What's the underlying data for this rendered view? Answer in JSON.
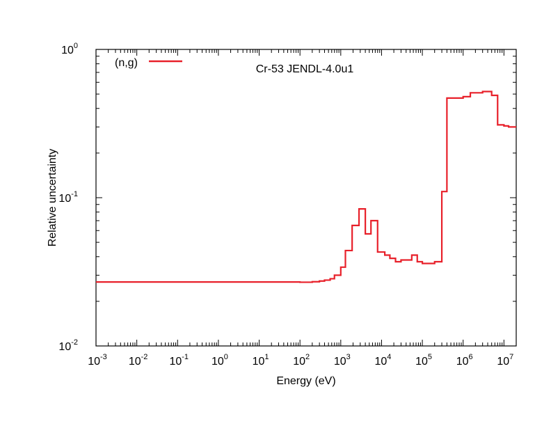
{
  "chart_data": {
    "type": "line",
    "title": "Cr-53 JENDL-4.0u1",
    "xlabel": "Energy (eV)",
    "ylabel": "Relative uncertainty",
    "x_scale": "log",
    "y_scale": "log",
    "xlim": [
      0.001,
      20000000
    ],
    "ylim": [
      0.01,
      1
    ],
    "x_ticks": [
      {
        "base": "10",
        "exp": "-3",
        "value": 0.001
      },
      {
        "base": "10",
        "exp": "-2",
        "value": 0.01
      },
      {
        "base": "10",
        "exp": "-1",
        "value": 0.1
      },
      {
        "base": "10",
        "exp": "0",
        "value": 1
      },
      {
        "base": "10",
        "exp": "1",
        "value": 10
      },
      {
        "base": "10",
        "exp": "2",
        "value": 100
      },
      {
        "base": "10",
        "exp": "3",
        "value": 1000
      },
      {
        "base": "10",
        "exp": "4",
        "value": 10000
      },
      {
        "base": "10",
        "exp": "5",
        "value": 100000
      },
      {
        "base": "10",
        "exp": "6",
        "value": 1000000
      },
      {
        "base": "10",
        "exp": "7",
        "value": 10000000
      }
    ],
    "y_ticks": [
      {
        "base": "10",
        "exp": "-2",
        "value": 0.01
      },
      {
        "base": "10",
        "exp": "-1",
        "value": 0.1
      },
      {
        "base": "10",
        "exp": "0",
        "value": 1
      }
    ],
    "legend_position": "top-left",
    "grid": false,
    "series": [
      {
        "name": "(n,g)",
        "color": "#e8202a",
        "step": true,
        "x": [
          0.001,
          0.1,
          10,
          100,
          200,
          300,
          400,
          550,
          700,
          1000,
          1300,
          1900,
          2800,
          4000,
          5500,
          8000,
          12000,
          16000,
          22000,
          30000,
          40000,
          55000,
          75000,
          100000,
          140000,
          200000,
          300000,
          400000,
          550000,
          1000000,
          1500000,
          2000000,
          3000000,
          5000000,
          7000000,
          10000000,
          13000000,
          20000000
        ],
        "y": [
          0.027,
          0.027,
          0.027,
          0.0269,
          0.0271,
          0.0274,
          0.0278,
          0.0284,
          0.03,
          0.034,
          0.044,
          0.065,
          0.084,
          0.057,
          0.07,
          0.043,
          0.041,
          0.039,
          0.037,
          0.038,
          0.038,
          0.041,
          0.037,
          0.036,
          0.036,
          0.037,
          0.11,
          0.47,
          0.47,
          0.48,
          0.51,
          0.51,
          0.52,
          0.49,
          0.31,
          0.305,
          0.3,
          0.3
        ]
      }
    ]
  }
}
